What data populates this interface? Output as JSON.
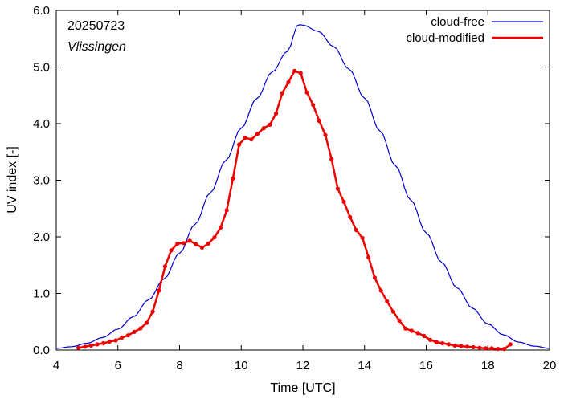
{
  "chart_data": {
    "type": "line",
    "xlabel": "Time  [UTC]",
    "ylabel": "UV index  [-]",
    "xlim": [
      4,
      20
    ],
    "ylim": [
      0,
      6
    ],
    "xticks": [
      4,
      6,
      8,
      10,
      12,
      14,
      16,
      18,
      20
    ],
    "yticks": [
      0,
      1,
      2,
      3,
      4,
      5,
      6
    ],
    "ytick_labels": [
      "0.0",
      "1.0",
      "2.0",
      "3.0",
      "4.0",
      "5.0",
      "6.0"
    ],
    "grid": false,
    "legend_position": "top-right",
    "annotations": [
      "20250723",
      "Vlissingen"
    ],
    "series": [
      {
        "name": "cloud-free",
        "color": "#0000cc",
        "markers": false,
        "x": [
          4.0,
          4.5,
          5.0,
          5.5,
          6.0,
          6.5,
          7.0,
          7.5,
          8.0,
          8.5,
          9.0,
          9.5,
          10.0,
          10.5,
          11.0,
          11.5,
          11.85,
          12.0,
          12.5,
          13.0,
          13.5,
          14.0,
          14.5,
          15.0,
          15.5,
          16.0,
          16.5,
          17.0,
          17.5,
          18.0,
          18.5,
          19.0,
          19.5,
          20.0
        ],
        "y": [
          0.03,
          0.06,
          0.12,
          0.22,
          0.37,
          0.59,
          0.89,
          1.26,
          1.71,
          2.22,
          2.78,
          3.35,
          3.92,
          4.44,
          4.91,
          5.28,
          5.75,
          5.74,
          5.63,
          5.36,
          4.96,
          4.45,
          3.87,
          3.26,
          2.65,
          2.07,
          1.55,
          1.1,
          0.74,
          0.46,
          0.27,
          0.14,
          0.07,
          0.03
        ]
      },
      {
        "name": "cloud-modified",
        "color": "#ee0000",
        "markers": true,
        "x": [
          4.72,
          4.93,
          5.13,
          5.33,
          5.53,
          5.73,
          5.93,
          6.13,
          6.33,
          6.53,
          6.73,
          6.93,
          7.13,
          7.33,
          7.53,
          7.73,
          7.93,
          8.13,
          8.33,
          8.53,
          8.73,
          8.93,
          9.13,
          9.33,
          9.53,
          9.73,
          9.93,
          10.13,
          10.33,
          10.53,
          10.73,
          10.93,
          11.13,
          11.33,
          11.53,
          11.73,
          11.93,
          12.13,
          12.33,
          12.53,
          12.73,
          12.93,
          13.13,
          13.33,
          13.53,
          13.73,
          13.93,
          14.13,
          14.33,
          14.53,
          14.73,
          14.93,
          15.13,
          15.33,
          15.53,
          15.73,
          15.93,
          16.13,
          16.33,
          16.53,
          16.73,
          16.93,
          17.13,
          17.33,
          17.53,
          17.73,
          17.93,
          18.13,
          18.33,
          18.53,
          18.73
        ],
        "y": [
          0.04,
          0.06,
          0.08,
          0.1,
          0.12,
          0.15,
          0.17,
          0.22,
          0.26,
          0.32,
          0.38,
          0.48,
          0.68,
          1.05,
          1.48,
          1.76,
          1.88,
          1.89,
          1.93,
          1.87,
          1.81,
          1.88,
          1.99,
          2.16,
          2.47,
          3.03,
          3.63,
          3.75,
          3.72,
          3.82,
          3.92,
          3.98,
          4.18,
          4.54,
          4.73,
          4.93,
          4.89,
          4.55,
          4.33,
          4.05,
          3.8,
          3.37,
          2.85,
          2.62,
          2.35,
          2.12,
          1.98,
          1.64,
          1.28,
          1.05,
          0.86,
          0.68,
          0.52,
          0.38,
          0.34,
          0.3,
          0.25,
          0.18,
          0.14,
          0.12,
          0.1,
          0.08,
          0.07,
          0.06,
          0.05,
          0.04,
          0.03,
          0.03,
          0.02,
          0.02,
          0.1
        ]
      }
    ]
  }
}
